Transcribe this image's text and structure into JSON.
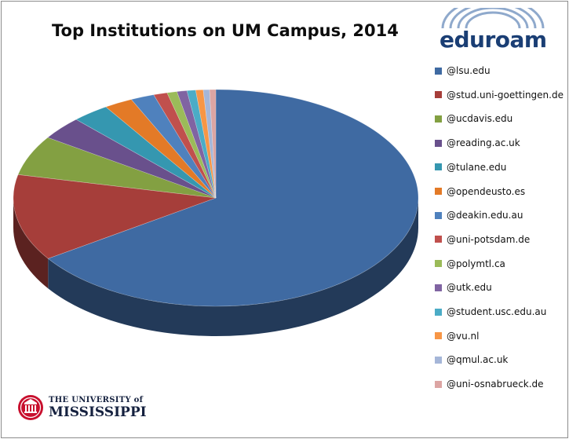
{
  "chart_data": {
    "type": "pie",
    "style": "3d",
    "title": "Top Institutions on UM Campus, 2014",
    "legend_position": "right",
    "series": [
      {
        "label": "@lsu.edu",
        "value": 66.0,
        "color": "#3f6aa2"
      },
      {
        "label": "@stud.uni-goettingen.de",
        "value": 13.0,
        "color": "#a63e3a"
      },
      {
        "label": "@ucdavis.edu",
        "value": 6.0,
        "color": "#83a042"
      },
      {
        "label": "@reading.ac.uk",
        "value": 3.5,
        "color": "#69508c"
      },
      {
        "label": "@tulane.edu",
        "value": 3.0,
        "color": "#3597b0"
      },
      {
        "label": "@opendeusto.es",
        "value": 2.3,
        "color": "#e37a27"
      },
      {
        "label": "@deakin.edu.au",
        "value": 1.9,
        "color": "#4f81bd"
      },
      {
        "label": "@uni-potsdam.de",
        "value": 1.1,
        "color": "#c0504d"
      },
      {
        "label": "@polymtl.ca",
        "value": 0.8,
        "color": "#9bbb59"
      },
      {
        "label": "@utk.edu",
        "value": 0.8,
        "color": "#8064a2"
      },
      {
        "label": "@student.usc.edu.au",
        "value": 0.7,
        "color": "#4bacc6"
      },
      {
        "label": "@vu.nl",
        "value": 0.6,
        "color": "#f79646"
      },
      {
        "label": "@qmul.ac.uk",
        "value": 0.5,
        "color": "#a5b6d8"
      },
      {
        "label": "@uni-osnabrueck.de",
        "value": 0.5,
        "color": "#dca5a3"
      }
    ]
  },
  "logos": {
    "eduroam": {
      "prefix": "edu",
      "suffix": "roam"
    },
    "university": {
      "line1": "THE UNIVERSITY of",
      "line2": "MISSISSIPPI"
    }
  }
}
